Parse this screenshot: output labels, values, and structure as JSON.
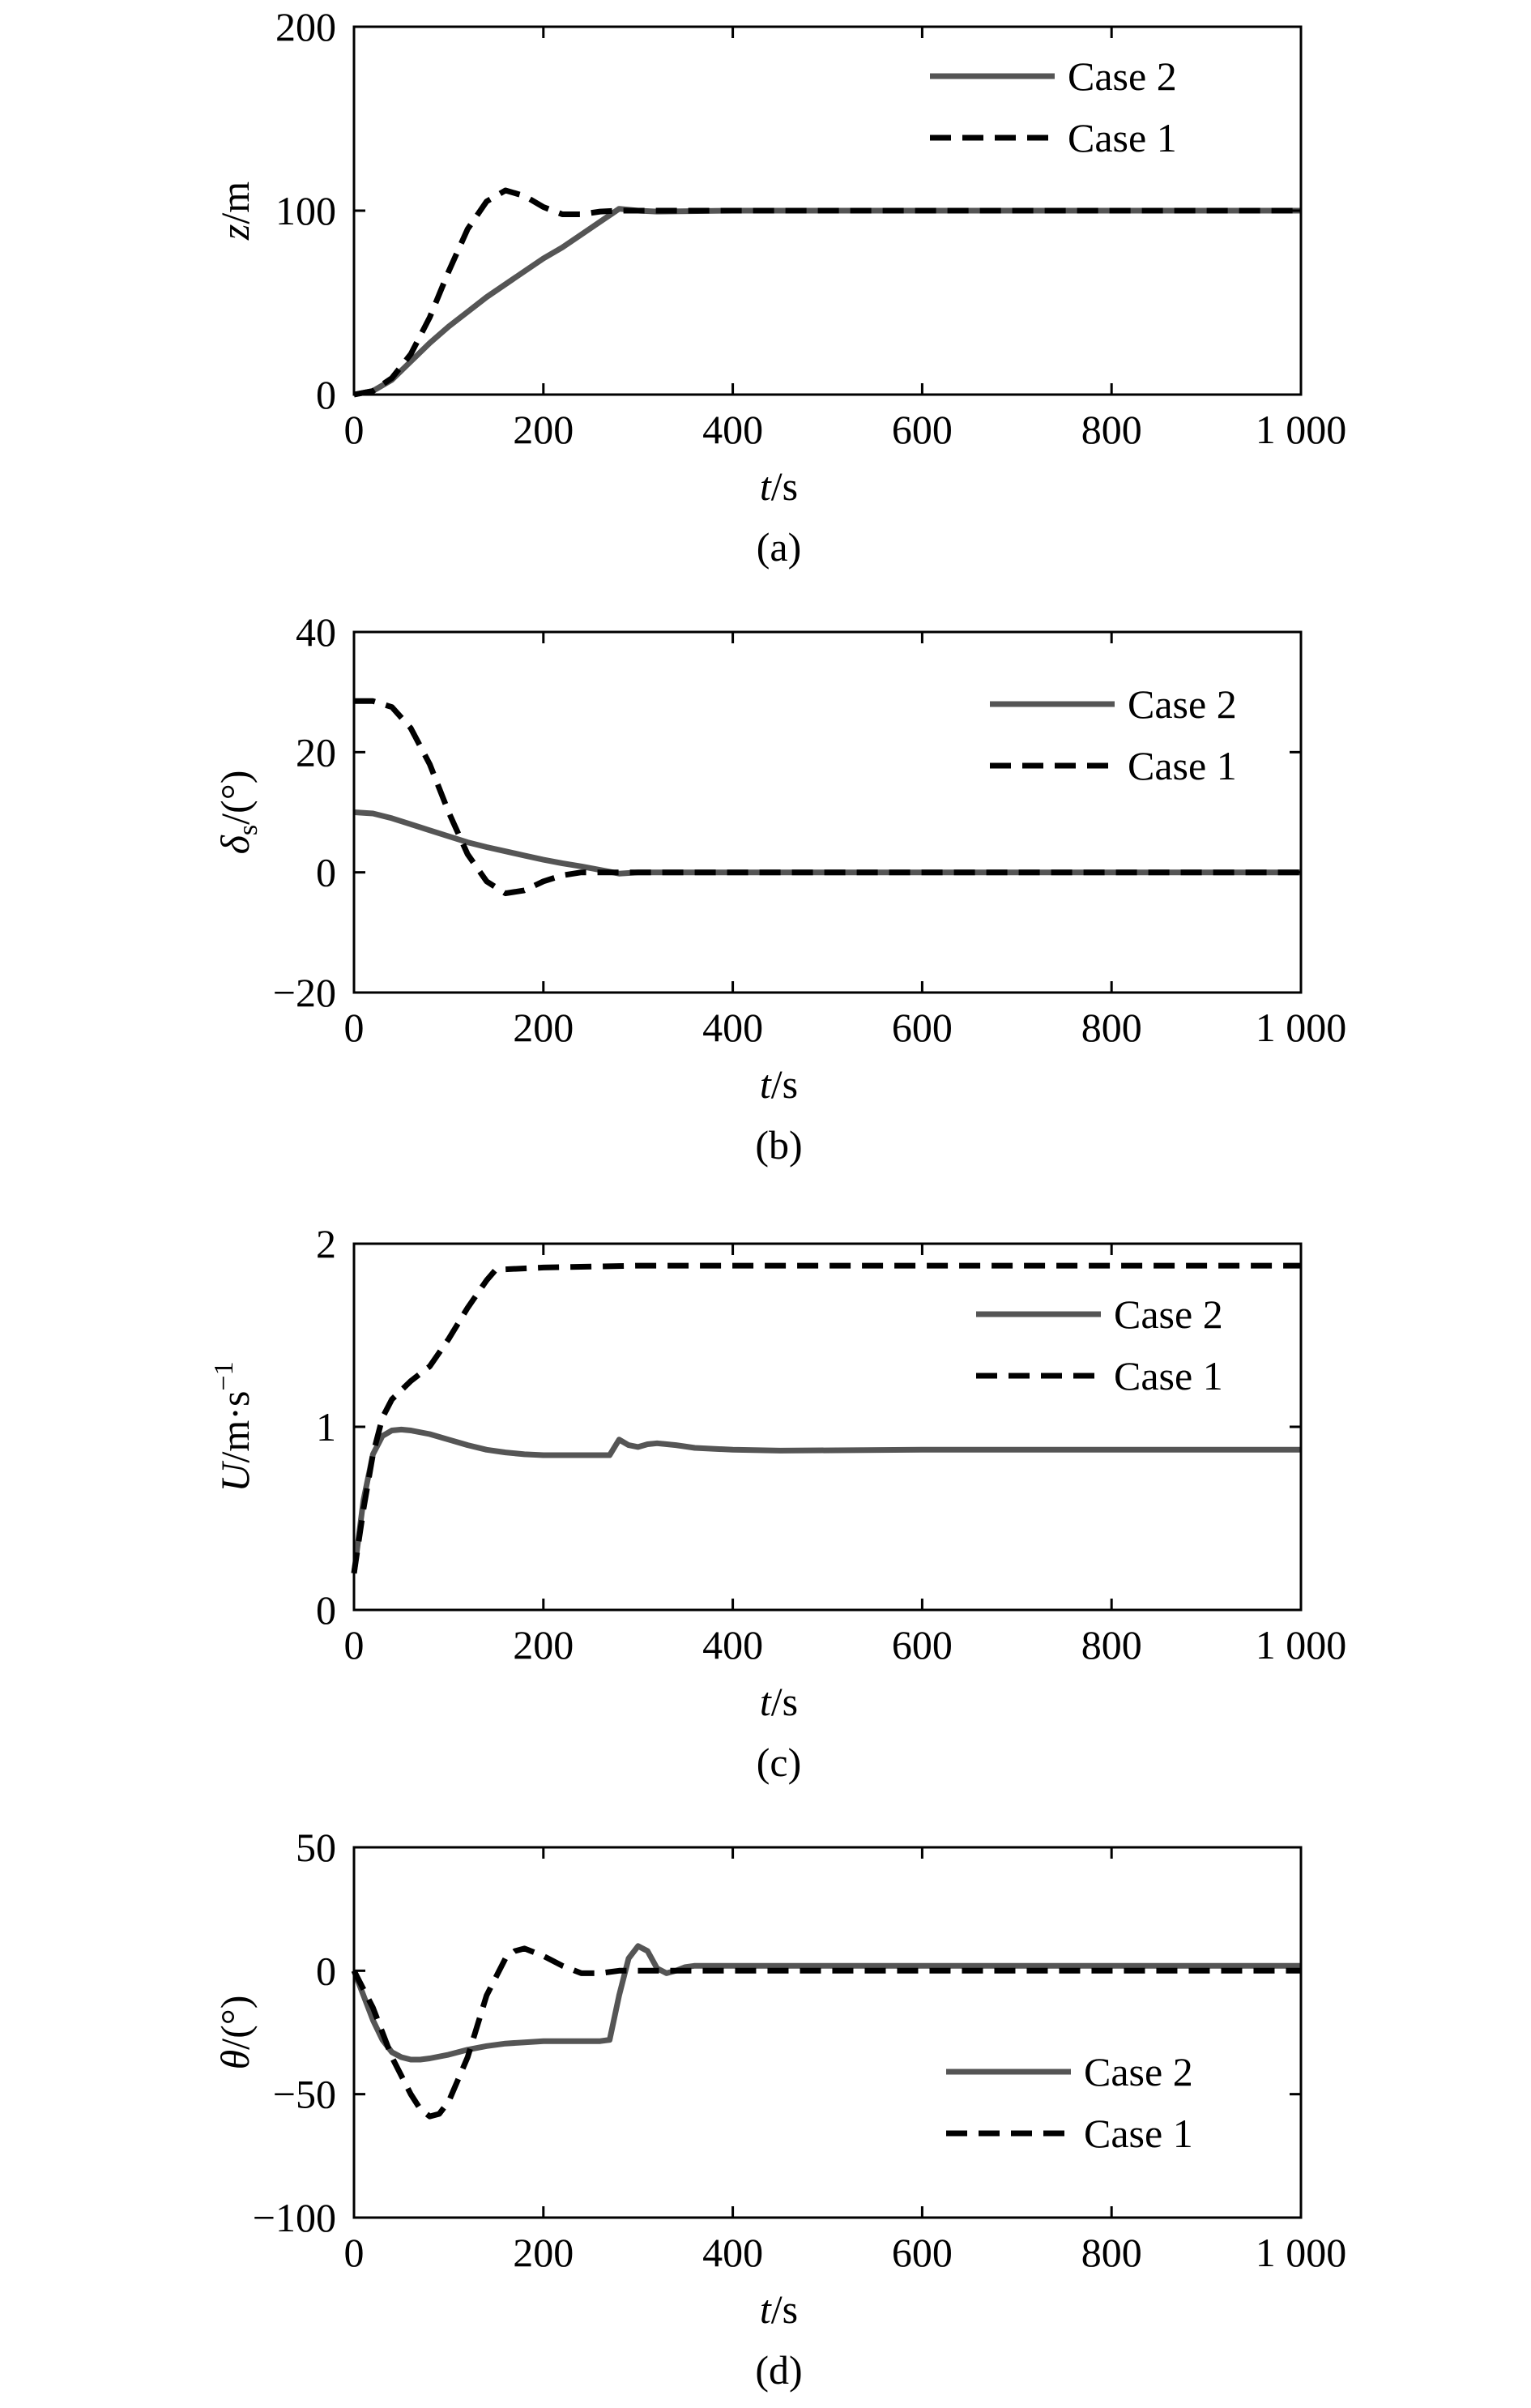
{
  "chart_data": [
    {
      "type": "line",
      "panel": "(a)",
      "xlabel": "t/s",
      "ylabel": "z/m",
      "xlim": [
        0,
        1000
      ],
      "ylim": [
        0,
        200
      ],
      "xticks": [
        0,
        200,
        400,
        600,
        800,
        1000
      ],
      "xtick_labels": [
        "0",
        "200",
        "400",
        "600",
        "800",
        "1 000"
      ],
      "yticks": [
        0,
        100,
        200
      ],
      "ytick_labels": [
        "0",
        "100",
        "200"
      ],
      "legend_position": "top-right",
      "series": [
        {
          "name": "Case 2",
          "style": "solid",
          "color": "#555555",
          "x": [
            0,
            20,
            40,
            60,
            80,
            100,
            120,
            140,
            160,
            180,
            200,
            220,
            240,
            260,
            280,
            300,
            320,
            400,
            600,
            800,
            1000
          ],
          "y": [
            0,
            2,
            8,
            18,
            28,
            37,
            45,
            53,
            60,
            67,
            74,
            80,
            87,
            94,
            101,
            100,
            99.5,
            100,
            100,
            100,
            100
          ]
        },
        {
          "name": "Case 1",
          "style": "dashed",
          "color": "#000000",
          "x": [
            0,
            20,
            40,
            60,
            80,
            100,
            120,
            140,
            160,
            180,
            200,
            220,
            240,
            260,
            280,
            300,
            400,
            600,
            800,
            1000
          ],
          "y": [
            0,
            2,
            9,
            22,
            42,
            67,
            90,
            105,
            111,
            108,
            102,
            98,
            98,
            99.5,
            100,
            100,
            100,
            100,
            100,
            100
          ]
        }
      ]
    },
    {
      "type": "line",
      "panel": "(b)",
      "xlabel": "t/s",
      "ylabel": "δs/(°)",
      "xlim": [
        0,
        1000
      ],
      "ylim": [
        -20,
        40
      ],
      "xticks": [
        0,
        200,
        400,
        600,
        800,
        1000
      ],
      "xtick_labels": [
        "0",
        "200",
        "400",
        "600",
        "800",
        "1 000"
      ],
      "yticks": [
        -20,
        0,
        20,
        40
      ],
      "ytick_labels": [
        "−20",
        "0",
        "20",
        "40"
      ],
      "legend_position": "top-right",
      "series": [
        {
          "name": "Case 2",
          "style": "solid",
          "color": "#555555",
          "x": [
            0,
            20,
            40,
            60,
            80,
            100,
            120,
            140,
            160,
            180,
            200,
            220,
            240,
            260,
            280,
            300,
            400,
            600,
            800,
            1000
          ],
          "y": [
            10,
            9.8,
            9,
            8,
            7,
            6,
            5,
            4.2,
            3.5,
            2.8,
            2.1,
            1.5,
            1,
            0.4,
            -0.2,
            0,
            0,
            0,
            0,
            0
          ]
        },
        {
          "name": "Case 1",
          "style": "dashed",
          "color": "#000000",
          "x": [
            0,
            20,
            40,
            60,
            80,
            100,
            120,
            140,
            160,
            180,
            200,
            220,
            240,
            260,
            280,
            300,
            400,
            600,
            800,
            1000
          ],
          "y": [
            28.5,
            28.5,
            27.5,
            24,
            18,
            10,
            3,
            -1.5,
            -3.5,
            -3,
            -1.5,
            -0.5,
            0,
            0,
            0,
            0,
            0,
            0,
            0,
            0
          ]
        }
      ]
    },
    {
      "type": "line",
      "panel": "(c)",
      "xlabel": "t/s",
      "ylabel": "U/m·s−1",
      "xlim": [
        0,
        1000
      ],
      "ylim": [
        0,
        2
      ],
      "xticks": [
        0,
        200,
        400,
        600,
        800,
        1000
      ],
      "xtick_labels": [
        "0",
        "200",
        "400",
        "600",
        "800",
        "1 000"
      ],
      "yticks": [
        0,
        1,
        2
      ],
      "ytick_labels": [
        "0",
        "1",
        "2"
      ],
      "legend_position": "top-right",
      "series": [
        {
          "name": "Case 2",
          "style": "solid",
          "color": "#555555",
          "x": [
            0,
            10,
            20,
            30,
            40,
            50,
            60,
            80,
            100,
            120,
            140,
            160,
            180,
            200,
            220,
            240,
            260,
            270,
            280,
            290,
            300,
            310,
            320,
            340,
            360,
            400,
            450,
            600,
            800,
            1000
          ],
          "y": [
            0.2,
            0.6,
            0.85,
            0.95,
            0.98,
            0.985,
            0.98,
            0.96,
            0.93,
            0.9,
            0.875,
            0.86,
            0.85,
            0.845,
            0.845,
            0.845,
            0.845,
            0.845,
            0.93,
            0.9,
            0.89,
            0.905,
            0.91,
            0.9,
            0.885,
            0.875,
            0.87,
            0.875,
            0.875,
            0.875
          ]
        },
        {
          "name": "Case 1",
          "style": "dashed",
          "color": "#000000",
          "x": [
            0,
            10,
            20,
            30,
            40,
            60,
            80,
            100,
            120,
            140,
            150,
            160,
            200,
            250,
            300,
            400,
            600,
            800,
            1000
          ],
          "y": [
            0.2,
            0.55,
            0.85,
            1.05,
            1.15,
            1.25,
            1.33,
            1.48,
            1.65,
            1.8,
            1.86,
            1.86,
            1.87,
            1.875,
            1.88,
            1.88,
            1.88,
            1.88,
            1.88
          ]
        }
      ]
    },
    {
      "type": "line",
      "panel": "(d)",
      "xlabel": "t/s",
      "ylabel": "θ/(°)",
      "xlim": [
        0,
        1000
      ],
      "ylim": [
        -100,
        50
      ],
      "xticks": [
        0,
        200,
        400,
        600,
        800,
        1000
      ],
      "xtick_labels": [
        "0",
        "200",
        "400",
        "600",
        "800",
        "1 000"
      ],
      "yticks": [
        -100,
        -50,
        0,
        50
      ],
      "ytick_labels": [
        "−100",
        "−50",
        "0",
        "50"
      ],
      "legend_position": "bottom-right",
      "series": [
        {
          "name": "Case 2",
          "style": "solid",
          "color": "#555555",
          "x": [
            0,
            10,
            20,
            30,
            40,
            50,
            60,
            70,
            80,
            100,
            120,
            140,
            160,
            180,
            200,
            220,
            240,
            260,
            270,
            280,
            290,
            300,
            310,
            320,
            330,
            340,
            350,
            360,
            380,
            400,
            600,
            800,
            1000
          ],
          "y": [
            0,
            -10,
            -20,
            -28,
            -33,
            -35,
            -36,
            -36,
            -35.5,
            -34,
            -32,
            -30.5,
            -29.5,
            -29,
            -28.5,
            -28.5,
            -28.5,
            -28.5,
            -28,
            -10,
            5,
            10,
            8,
            1,
            -1,
            0,
            1.5,
            2,
            2,
            2,
            2,
            2,
            2
          ]
        },
        {
          "name": "Case 1",
          "style": "dashed",
          "color": "#000000",
          "x": [
            0,
            20,
            40,
            60,
            70,
            80,
            90,
            100,
            120,
            140,
            160,
            170,
            180,
            200,
            220,
            240,
            260,
            280,
            300,
            400,
            600,
            800,
            1000
          ],
          "y": [
            0,
            -15,
            -35,
            -50,
            -56,
            -59,
            -58,
            -53,
            -35,
            -10,
            5,
            8,
            9,
            6,
            2,
            -1,
            -1,
            0,
            0,
            0,
            0,
            0,
            0
          ]
        }
      ]
    }
  ]
}
